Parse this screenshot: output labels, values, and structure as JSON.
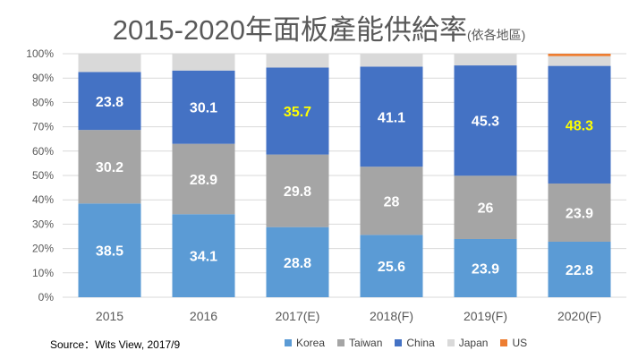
{
  "chart_data": {
    "type": "bar",
    "stacked": true,
    "title": "2015-2020年面板產能供給率",
    "subtitle": "(依各地區)",
    "categories": [
      "2015",
      "2016",
      "2017(E)",
      "2018(F)",
      "2019(F)",
      "2020(F)"
    ],
    "series": [
      {
        "name": "Korea",
        "color": "#5b9bd5",
        "values": [
          38.5,
          34.1,
          28.8,
          25.6,
          23.9,
          22.8
        ]
      },
      {
        "name": "Taiwan",
        "color": "#a5a5a5",
        "values": [
          30.2,
          28.9,
          29.8,
          28,
          26,
          23.9
        ]
      },
      {
        "name": "China",
        "color": "#4472c4",
        "values": [
          23.8,
          30.1,
          35.7,
          41.1,
          45.3,
          48.3
        ]
      },
      {
        "name": "Japan",
        "color": "#d9d9d9",
        "values": [
          7.5,
          6.9,
          5.7,
          5.3,
          4.8,
          4.0
        ]
      },
      {
        "name": "US",
        "color": "#ed7d31",
        "values": [
          0,
          0,
          0,
          0,
          0,
          1.0
        ]
      }
    ],
    "labeled_series": [
      "Korea",
      "Taiwan",
      "China"
    ],
    "highlight_labels": {
      "China": [
        2,
        5
      ]
    },
    "label_color": "#ffffff",
    "highlight_color": "#ffff00",
    "ylim": [
      0,
      100
    ],
    "yticks": [
      "0%",
      "10%",
      "20%",
      "30%",
      "40%",
      "50%",
      "60%",
      "70%",
      "80%",
      "90%",
      "100%"
    ],
    "grid": true,
    "legend_position": "bottom"
  },
  "source": "Source：Wits View, 2017/9"
}
